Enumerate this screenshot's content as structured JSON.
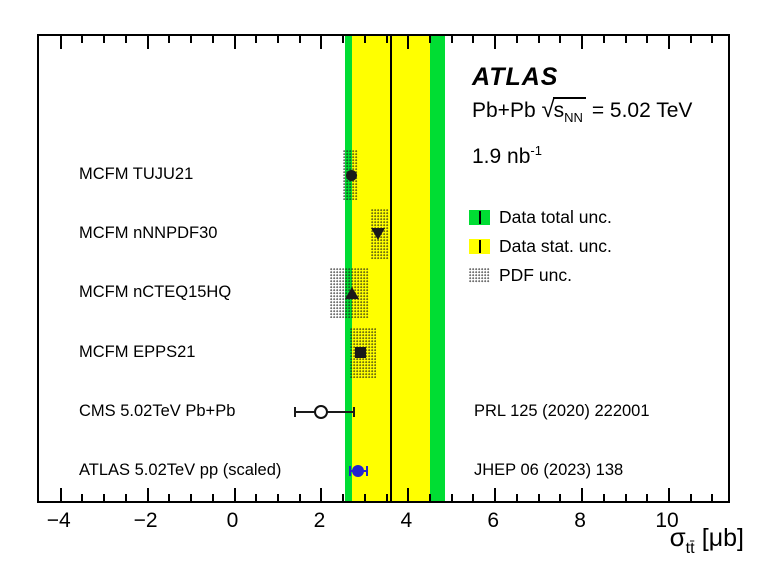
{
  "header": {
    "experiment": "ATLAS",
    "system": "Pb+Pb",
    "sqrt_arg": "s",
    "sqrt_sub": "NN",
    "energy": "= 5.02 TeV",
    "lumi": "1.9 nb",
    "lumi_sup": "-1"
  },
  "legend": {
    "items": [
      {
        "label": "Data total unc.",
        "swatch": "total"
      },
      {
        "label": "Data stat. unc.",
        "swatch": "stat"
      },
      {
        "label": "PDF unc.",
        "swatch": "pdf"
      }
    ]
  },
  "axis_display": {
    "symbol": "σ",
    "subscript": "tt̄",
    "unit": "[μb]",
    "tick_labels": [
      "−4",
      "−2",
      "0",
      "2",
      "4",
      "6",
      "8",
      "10"
    ]
  },
  "colors": {
    "total_unc_band": "#00dd33",
    "stat_unc_band": "#ffff00",
    "marker_black": "#1a1a1a",
    "marker_blue": "#2222cc"
  },
  "chart_data": {
    "type": "scatter",
    "title": "",
    "xlabel": "σ_tt̄ [μb]",
    "ylabel": "",
    "xlim": [
      -4.5,
      11.45
    ],
    "x_major_ticks": [
      -4,
      -2,
      0,
      2,
      4,
      6,
      8,
      10
    ],
    "x_minor_step": 0.5,
    "grid": false,
    "legend_position": "upper-right",
    "measurement": {
      "central_value_ub": 3.6,
      "stat_unc_band_ub": [
        2.7,
        4.5
      ],
      "total_unc_band_ub": [
        2.55,
        4.85
      ]
    },
    "series": [
      {
        "name": "MCFM TUJU21",
        "value": 2.7,
        "pdf_unc_band": [
          2.5,
          2.85
        ],
        "marker": "circle",
        "color": "black"
      },
      {
        "name": "MCFM nNNPDF30",
        "value": 3.3,
        "pdf_unc_band": [
          3.13,
          3.55
        ],
        "marker": "triangle-down",
        "color": "black"
      },
      {
        "name": "MCFM nCTEQ15HQ",
        "value": 2.7,
        "pdf_unc_band": [
          2.2,
          3.1
        ],
        "marker": "triangle-up",
        "color": "black"
      },
      {
        "name": "MCFM EPPS21",
        "value": 2.9,
        "pdf_unc_band": [
          2.65,
          3.25
        ],
        "marker": "square",
        "color": "black"
      },
      {
        "name": "CMS 5.02TeV Pb+Pb",
        "value": 2.0,
        "error_bar": [
          1.4,
          2.75
        ],
        "marker": "open-circle",
        "color": "black",
        "reference": "PRL 125 (2020) 222001"
      },
      {
        "name": "ATLAS 5.02TeV pp (scaled)",
        "value": 2.85,
        "error_bar": [
          2.65,
          3.05
        ],
        "marker": "circle",
        "color": "blue",
        "reference": "JHEP 06 (2023) 138"
      }
    ]
  }
}
